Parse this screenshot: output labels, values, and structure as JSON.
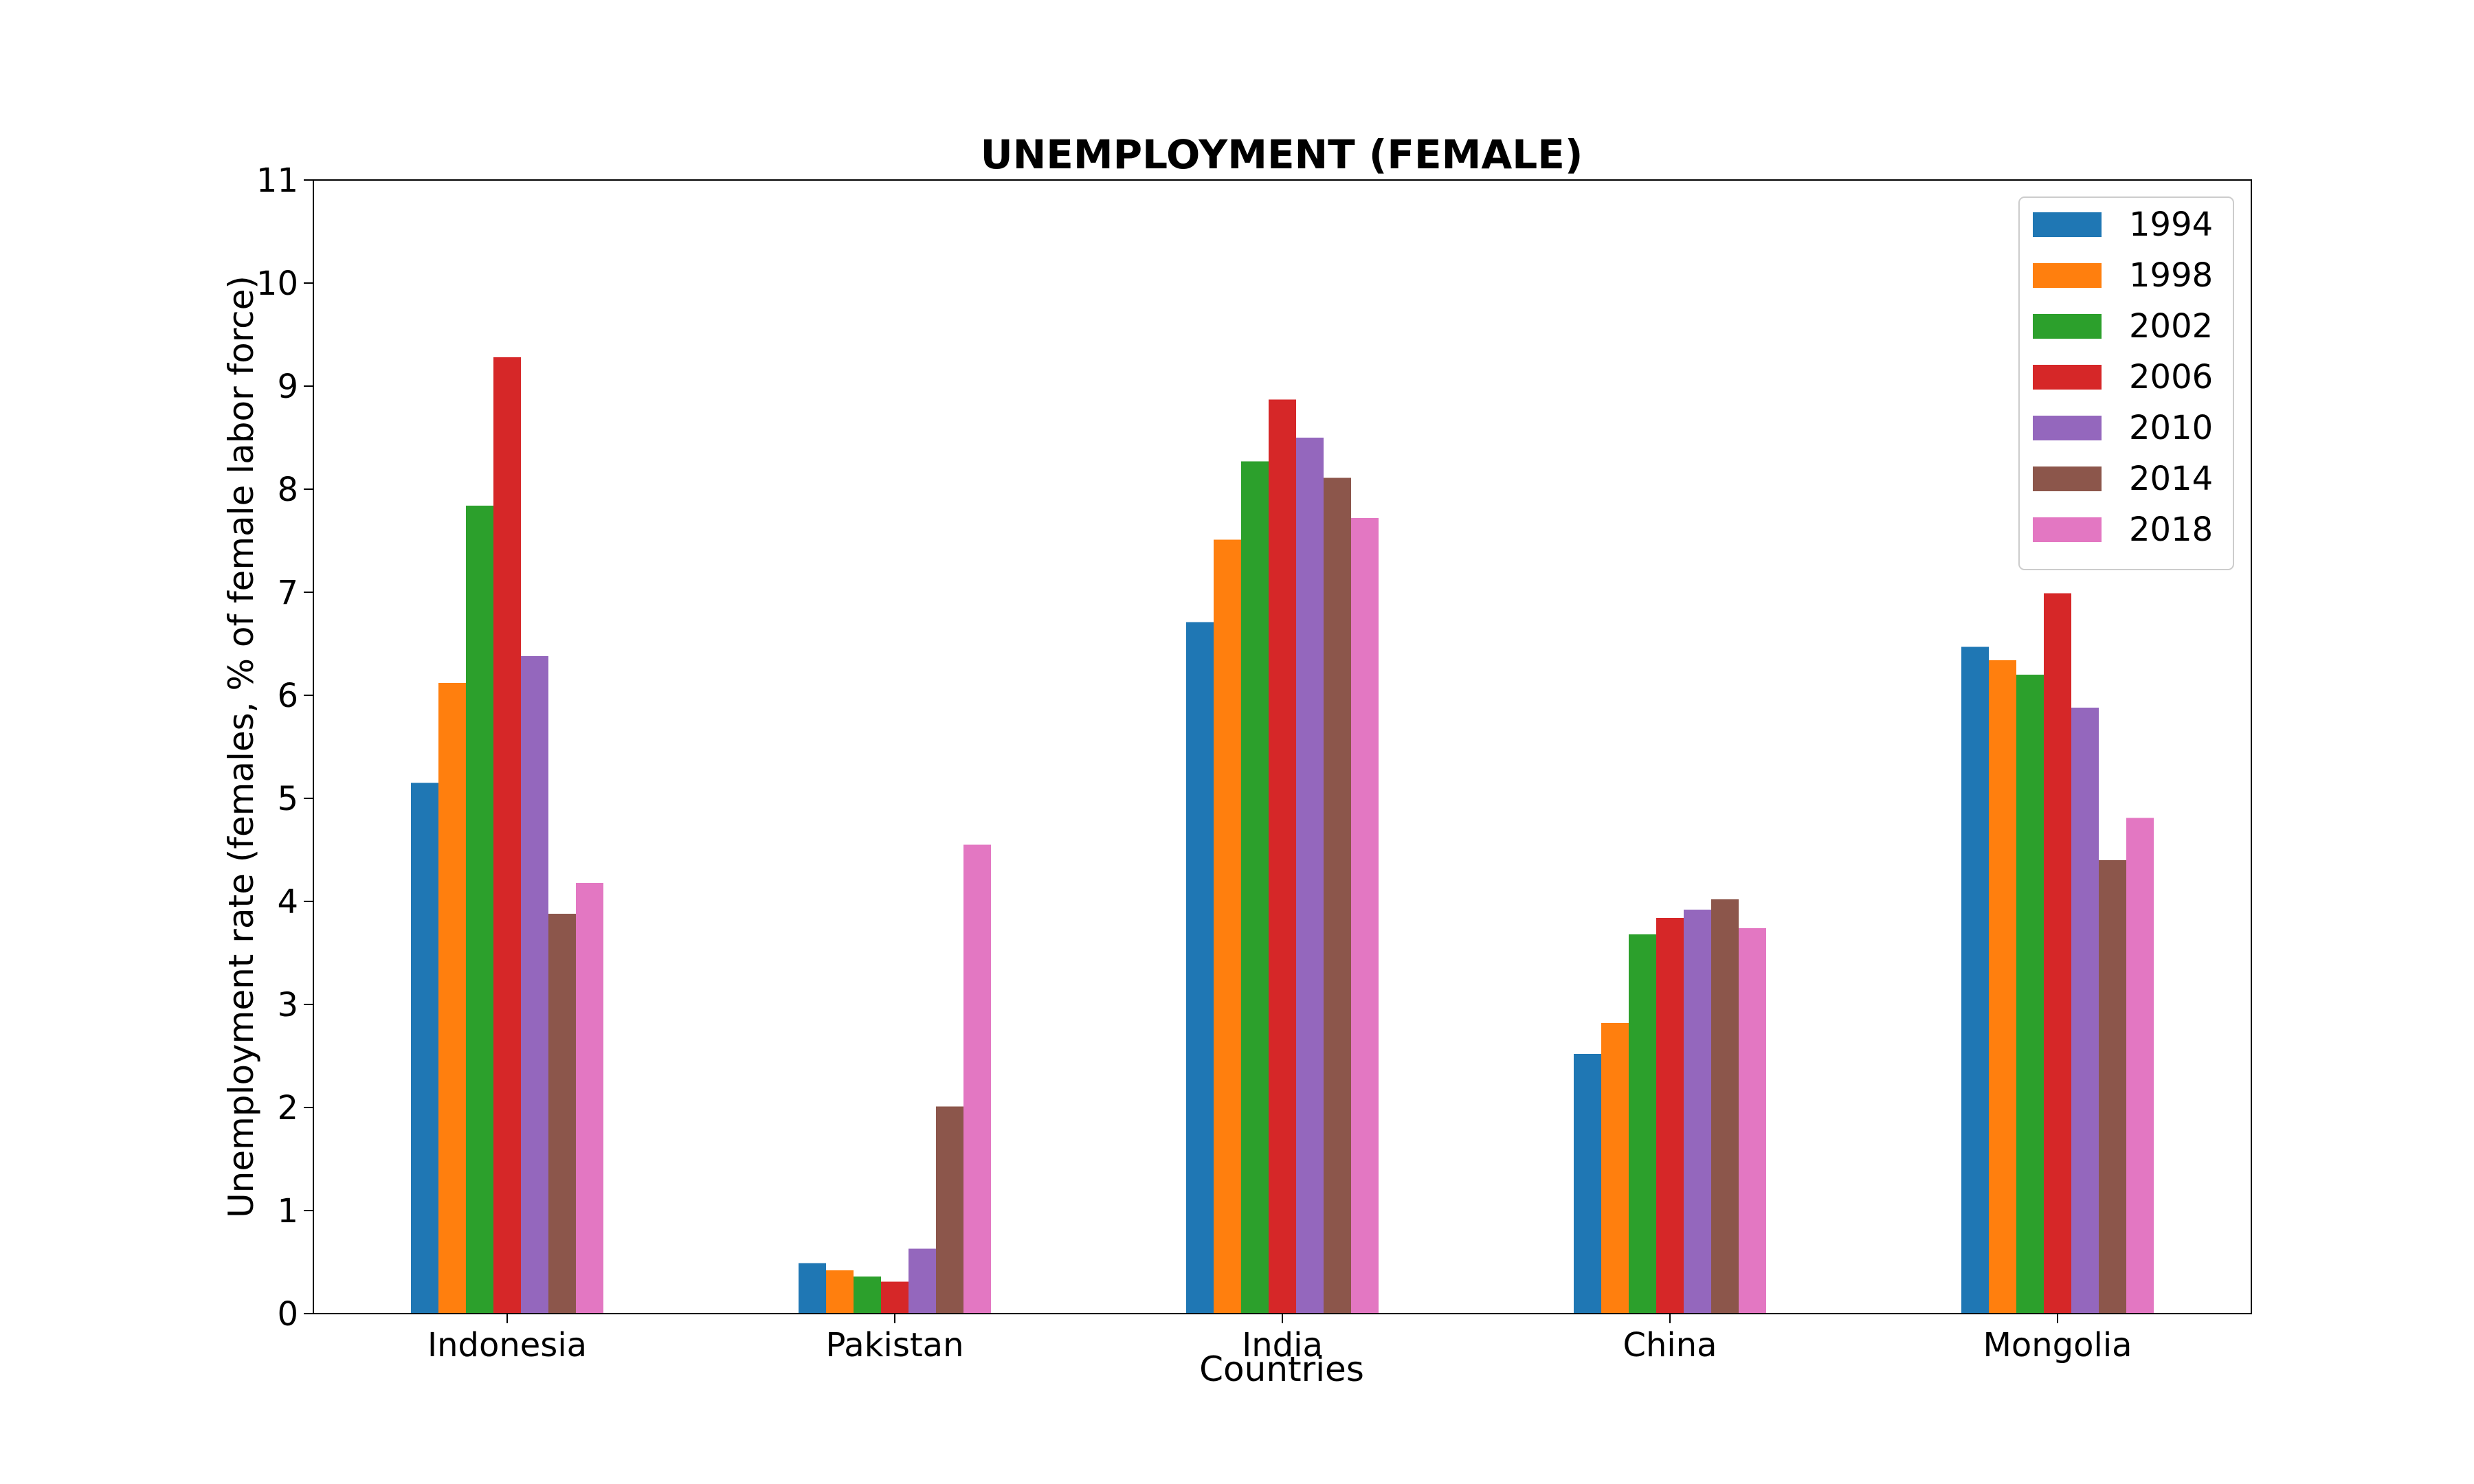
{
  "chart_data": {
    "type": "bar",
    "title": "UNEMPLOYMENT (FEMALE)",
    "xlabel": "Countries",
    "ylabel": "Unemployment rate (females, % of female labor force)",
    "ylim": [
      0,
      11
    ],
    "yticks": [
      0,
      1,
      2,
      3,
      4,
      5,
      6,
      7,
      8,
      9,
      10,
      11
    ],
    "grid": false,
    "legend_position": "top-right",
    "categories": [
      "Indonesia",
      "Pakistan",
      "India",
      "China",
      "Mongolia"
    ],
    "series": [
      {
        "name": "1994",
        "color": "#1f77b4",
        "values": [
          5.15,
          0.49,
          6.71,
          2.52,
          6.47
        ]
      },
      {
        "name": "1998",
        "color": "#ff7f0e",
        "values": [
          6.12,
          0.42,
          7.51,
          2.82,
          6.34
        ]
      },
      {
        "name": "2002",
        "color": "#2ca02c",
        "values": [
          7.84,
          0.36,
          8.27,
          3.68,
          6.2
        ]
      },
      {
        "name": "2006",
        "color": "#d62728",
        "values": [
          9.28,
          0.31,
          8.87,
          3.84,
          6.99
        ]
      },
      {
        "name": "2010",
        "color": "#9467bd",
        "values": [
          6.38,
          0.63,
          8.5,
          3.92,
          5.88
        ]
      },
      {
        "name": "2014",
        "color": "#8c564b",
        "values": [
          3.88,
          2.01,
          8.11,
          4.02,
          4.4
        ]
      },
      {
        "name": "2018",
        "color": "#e377c2",
        "values": [
          4.18,
          4.55,
          7.72,
          3.74,
          4.81
        ]
      }
    ]
  }
}
